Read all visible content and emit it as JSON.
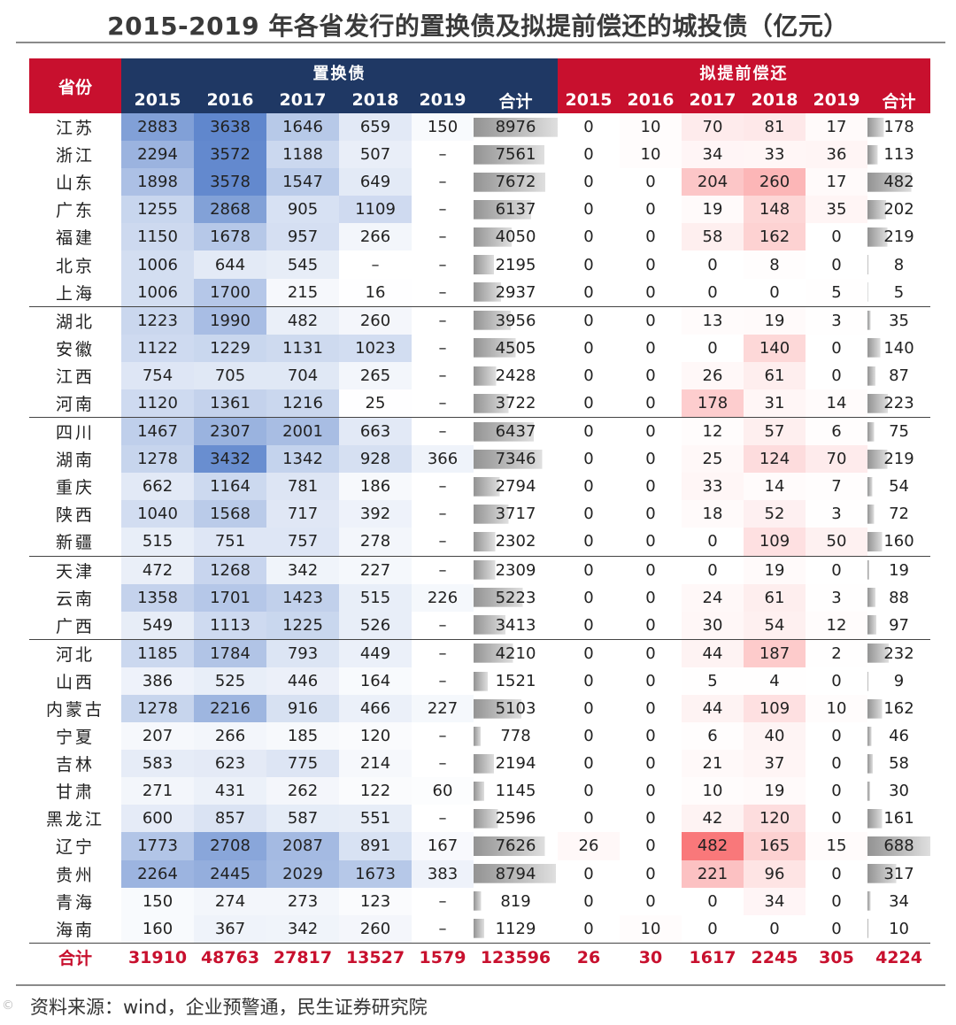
{
  "page": {
    "title": "2015-2019 年各省发行的置换债及拟提前偿还的城投债（亿元）",
    "source": "资料来源：wind，企业预警通，民生证券研究院",
    "watermark": "©"
  },
  "colors": {
    "header_blue": "#1f3864",
    "header_red": "#c8102e",
    "total_text": "#c8102e",
    "heat_blue": "#4472c4",
    "heat_red": "#f8696b",
    "bar_gray": "#808080"
  },
  "chart_data": {
    "type": "table",
    "title": "2015-2019 年各省发行的置换债及拟提前偿还的城投债（亿元）",
    "header": {
      "province": "省份",
      "group1": "置换债",
      "group2": "拟提前偿还",
      "years": [
        "2015",
        "2016",
        "2017",
        "2018",
        "2019"
      ],
      "total": "合计"
    },
    "rows": [
      {
        "prov": "江苏",
        "swap": [
          "2883",
          "3638",
          "1646",
          "659",
          "150"
        ],
        "swap_total": "8976",
        "early": [
          "0",
          "10",
          "70",
          "81",
          "17"
        ],
        "early_total": "178"
      },
      {
        "prov": "浙江",
        "swap": [
          "2294",
          "3572",
          "1188",
          "507",
          "–"
        ],
        "swap_total": "7561",
        "early": [
          "0",
          "10",
          "34",
          "33",
          "36"
        ],
        "early_total": "113"
      },
      {
        "prov": "山东",
        "swap": [
          "1898",
          "3578",
          "1547",
          "649",
          "–"
        ],
        "swap_total": "7672",
        "early": [
          "0",
          "0",
          "204",
          "260",
          "17"
        ],
        "early_total": "482"
      },
      {
        "prov": "广东",
        "swap": [
          "1255",
          "2868",
          "905",
          "1109",
          "–"
        ],
        "swap_total": "6137",
        "early": [
          "0",
          "0",
          "19",
          "148",
          "35"
        ],
        "early_total": "202"
      },
      {
        "prov": "福建",
        "swap": [
          "1150",
          "1678",
          "957",
          "266",
          "–"
        ],
        "swap_total": "4050",
        "early": [
          "0",
          "0",
          "58",
          "162",
          "0"
        ],
        "early_total": "219"
      },
      {
        "prov": "北京",
        "swap": [
          "1006",
          "644",
          "545",
          "–",
          "–"
        ],
        "swap_total": "2195",
        "early": [
          "0",
          "0",
          "0",
          "8",
          "0"
        ],
        "early_total": "8"
      },
      {
        "prov": "上海",
        "swap": [
          "1006",
          "1700",
          "215",
          "16",
          "–"
        ],
        "swap_total": "2937",
        "early": [
          "0",
          "0",
          "0",
          "0",
          "5"
        ],
        "early_total": "5"
      },
      {
        "prov": "湖北",
        "swap": [
          "1223",
          "1990",
          "482",
          "260",
          "–"
        ],
        "swap_total": "3956",
        "early": [
          "0",
          "0",
          "13",
          "19",
          "3"
        ],
        "early_total": "35",
        "group_start": true
      },
      {
        "prov": "安徽",
        "swap": [
          "1122",
          "1229",
          "1131",
          "1023",
          "–"
        ],
        "swap_total": "4505",
        "early": [
          "0",
          "0",
          "0",
          "140",
          "0"
        ],
        "early_total": "140"
      },
      {
        "prov": "江西",
        "swap": [
          "754",
          "705",
          "704",
          "265",
          "–"
        ],
        "swap_total": "2428",
        "early": [
          "0",
          "0",
          "26",
          "61",
          "0"
        ],
        "early_total": "87"
      },
      {
        "prov": "河南",
        "swap": [
          "1120",
          "1361",
          "1216",
          "25",
          "–"
        ],
        "swap_total": "3722",
        "early": [
          "0",
          "0",
          "178",
          "31",
          "14"
        ],
        "early_total": "223"
      },
      {
        "prov": "四川",
        "swap": [
          "1467",
          "2307",
          "2001",
          "663",
          "–"
        ],
        "swap_total": "6437",
        "early": [
          "0",
          "0",
          "12",
          "57",
          "6"
        ],
        "early_total": "75",
        "group_start": true
      },
      {
        "prov": "湖南",
        "swap": [
          "1278",
          "3432",
          "1342",
          "928",
          "366"
        ],
        "swap_total": "7346",
        "early": [
          "0",
          "0",
          "25",
          "124",
          "70"
        ],
        "early_total": "219"
      },
      {
        "prov": "重庆",
        "swap": [
          "662",
          "1164",
          "781",
          "186",
          "–"
        ],
        "swap_total": "2794",
        "early": [
          "0",
          "0",
          "33",
          "14",
          "7"
        ],
        "early_total": "54"
      },
      {
        "prov": "陕西",
        "swap": [
          "1040",
          "1568",
          "717",
          "392",
          "–"
        ],
        "swap_total": "3717",
        "early": [
          "0",
          "0",
          "18",
          "52",
          "3"
        ],
        "early_total": "72"
      },
      {
        "prov": "新疆",
        "swap": [
          "515",
          "751",
          "757",
          "278",
          "–"
        ],
        "swap_total": "2302",
        "early": [
          "0",
          "0",
          "0",
          "109",
          "50"
        ],
        "early_total": "160"
      },
      {
        "prov": "天津",
        "swap": [
          "472",
          "1268",
          "342",
          "227",
          "–"
        ],
        "swap_total": "2309",
        "early": [
          "0",
          "0",
          "0",
          "19",
          "0"
        ],
        "early_total": "19",
        "group_start": true
      },
      {
        "prov": "云南",
        "swap": [
          "1358",
          "1701",
          "1423",
          "515",
          "226"
        ],
        "swap_total": "5223",
        "early": [
          "0",
          "0",
          "24",
          "61",
          "3"
        ],
        "early_total": "88"
      },
      {
        "prov": "广西",
        "swap": [
          "549",
          "1113",
          "1225",
          "526",
          "–"
        ],
        "swap_total": "3413",
        "early": [
          "0",
          "0",
          "30",
          "54",
          "12"
        ],
        "early_total": "97"
      },
      {
        "prov": "河北",
        "swap": [
          "1185",
          "1784",
          "793",
          "449",
          "–"
        ],
        "swap_total": "4210",
        "early": [
          "0",
          "0",
          "44",
          "187",
          "2"
        ],
        "early_total": "232",
        "group_start": true
      },
      {
        "prov": "山西",
        "swap": [
          "386",
          "525",
          "446",
          "164",
          "–"
        ],
        "swap_total": "1521",
        "early": [
          "0",
          "0",
          "5",
          "4",
          "0"
        ],
        "early_total": "9"
      },
      {
        "prov": "内蒙古",
        "swap": [
          "1278",
          "2216",
          "916",
          "466",
          "227"
        ],
        "swap_total": "5103",
        "early": [
          "0",
          "0",
          "44",
          "109",
          "10"
        ],
        "early_total": "162"
      },
      {
        "prov": "宁夏",
        "swap": [
          "207",
          "266",
          "185",
          "120",
          "–"
        ],
        "swap_total": "778",
        "early": [
          "0",
          "0",
          "6",
          "40",
          "0"
        ],
        "early_total": "46"
      },
      {
        "prov": "吉林",
        "swap": [
          "583",
          "623",
          "775",
          "214",
          "–"
        ],
        "swap_total": "2194",
        "early": [
          "0",
          "0",
          "21",
          "37",
          "0"
        ],
        "early_total": "58"
      },
      {
        "prov": "甘肃",
        "swap": [
          "271",
          "431",
          "262",
          "122",
          "60"
        ],
        "swap_total": "1145",
        "early": [
          "0",
          "0",
          "10",
          "19",
          "0"
        ],
        "early_total": "30"
      },
      {
        "prov": "黑龙江",
        "swap": [
          "600",
          "857",
          "587",
          "551",
          "–"
        ],
        "swap_total": "2596",
        "early": [
          "0",
          "0",
          "42",
          "120",
          "0"
        ],
        "early_total": "161"
      },
      {
        "prov": "辽宁",
        "swap": [
          "1773",
          "2708",
          "2087",
          "891",
          "167"
        ],
        "swap_total": "7626",
        "early": [
          "26",
          "0",
          "482",
          "165",
          "15"
        ],
        "early_total": "688"
      },
      {
        "prov": "贵州",
        "swap": [
          "2264",
          "2445",
          "2029",
          "1673",
          "383"
        ],
        "swap_total": "8794",
        "early": [
          "0",
          "0",
          "221",
          "96",
          "0"
        ],
        "early_total": "317"
      },
      {
        "prov": "青海",
        "swap": [
          "150",
          "274",
          "273",
          "123",
          "–"
        ],
        "swap_total": "819",
        "early": [
          "0",
          "0",
          "0",
          "34",
          "0"
        ],
        "early_total": "34"
      },
      {
        "prov": "海南",
        "swap": [
          "160",
          "367",
          "342",
          "260",
          "–"
        ],
        "swap_total": "1129",
        "early": [
          "0",
          "10",
          "0",
          "0",
          "0"
        ],
        "early_total": "10"
      }
    ],
    "totals": {
      "label": "合计",
      "swap": [
        "31910",
        "48763",
        "27817",
        "13527",
        "1579"
      ],
      "swap_total": "123596",
      "early": [
        "26",
        "30",
        "1617",
        "2245",
        "305"
      ],
      "early_total": "4224"
    }
  }
}
